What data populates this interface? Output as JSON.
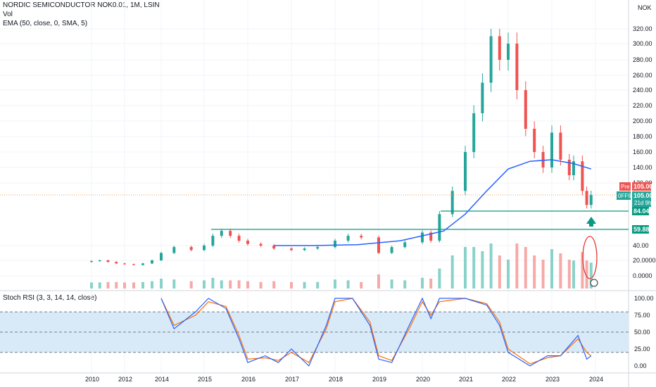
{
  "legend": {
    "title": "NORDIC SEMICONDUCTOR NOK0.01, 1M, LSIN",
    "vol": "Vol",
    "ema": "EMA (50, close, 0, SMA, 5)",
    "stoch": "Stoch RSI (3, 3, 14, 14, close)"
  },
  "currency": "NOK",
  "colors": {
    "up": "#26a69a",
    "down": "#ef5350",
    "up_vol": "#89d2c9",
    "down_vol": "#f7a9a7",
    "ema": "#2962ff",
    "stoch_k": "#2962ff",
    "stoch_d": "#ff6d00",
    "support": "#089981",
    "band": "#d8eaf8",
    "ellipse": "#e53935"
  },
  "badges": {
    "price_tag": "Pre",
    "price": "105.00",
    "ticker": "0FF9",
    "price2": "105.00",
    "countdown": "21d 9h",
    "level1": "84.04",
    "level2": "59.88"
  },
  "chart_data": [
    {
      "type": "candlestick",
      "title": "NORDIC SEMICONDUCTOR NOK0.01, 1M, LSIN",
      "y_ticks": [
        "0.0000",
        "20.0000",
        "40.00",
        "59.88",
        "84.04",
        "105.00",
        "120.00",
        "140.00",
        "160.00",
        "180.00",
        "200.00",
        "220.00",
        "240.00",
        "260.00",
        "280.00",
        "300.00",
        "320.00"
      ],
      "x_ticks": [
        "2010",
        "2012",
        "2014",
        "2015",
        "2016",
        "2017",
        "2018",
        "2019",
        "2020",
        "2021",
        "2022",
        "2023",
        "2024"
      ],
      "levels": [
        84.04,
        59.88
      ],
      "last_price": 105.0,
      "series": [
        {
          "name": "Price",
          "points": [
            {
              "t": 2010.0,
              "o": 18,
              "c": 19
            },
            {
              "t": 2010.5,
              "c": 20
            },
            {
              "t": 2011.0,
              "c": 18
            },
            {
              "t": 2011.5,
              "c": 16
            },
            {
              "t": 2012.0,
              "c": 15
            },
            {
              "t": 2012.5,
              "c": 14
            },
            {
              "t": 2013.0,
              "c": 16
            },
            {
              "t": 2013.5,
              "c": 20
            },
            {
              "t": 2014.0,
              "c": 30
            },
            {
              "t": 2014.3,
              "c": 38
            },
            {
              "t": 2014.7,
              "c": 34
            },
            {
              "t": 2015.0,
              "c": 40
            },
            {
              "t": 2015.2,
              "c": 52
            },
            {
              "t": 2015.4,
              "c": 58
            },
            {
              "t": 2015.6,
              "c": 52
            },
            {
              "t": 2015.8,
              "c": 46
            },
            {
              "t": 2016.0,
              "c": 42
            },
            {
              "t": 2016.3,
              "c": 40
            },
            {
              "t": 2016.6,
              "c": 36
            },
            {
              "t": 2017.0,
              "c": 34
            },
            {
              "t": 2017.3,
              "c": 36
            },
            {
              "t": 2017.6,
              "c": 38
            },
            {
              "t": 2018.0,
              "c": 46
            },
            {
              "t": 2018.3,
              "c": 52
            },
            {
              "t": 2018.6,
              "c": 50
            },
            {
              "t": 2019.0,
              "c": 30
            },
            {
              "t": 2019.3,
              "c": 38
            },
            {
              "t": 2019.6,
              "c": 44
            },
            {
              "t": 2020.0,
              "c": 56
            },
            {
              "t": 2020.2,
              "c": 46
            },
            {
              "t": 2020.4,
              "c": 80
            },
            {
              "t": 2020.7,
              "c": 110
            },
            {
              "t": 2021.0,
              "c": 160
            },
            {
              "t": 2021.2,
              "c": 210
            },
            {
              "t": 2021.4,
              "c": 250
            },
            {
              "t": 2021.6,
              "c": 310
            },
            {
              "t": 2021.8,
              "c": 280
            },
            {
              "t": 2022.0,
              "c": 300
            },
            {
              "t": 2022.2,
              "c": 240
            },
            {
              "t": 2022.4,
              "c": 190
            },
            {
              "t": 2022.6,
              "c": 160
            },
            {
              "t": 2022.8,
              "c": 140
            },
            {
              "t": 2023.0,
              "c": 185
            },
            {
              "t": 2023.2,
              "c": 150
            },
            {
              "t": 2023.4,
              "c": 130
            },
            {
              "t": 2023.5,
              "c": 148
            },
            {
              "t": 2023.7,
              "c": 110
            },
            {
              "t": 2023.8,
              "c": 92
            },
            {
              "t": 2023.9,
              "c": 105
            }
          ]
        },
        {
          "name": "EMA (50, close, 0, SMA, 5)",
          "points": [
            {
              "t": 2016.6,
              "v": 40
            },
            {
              "t": 2017.5,
              "v": 40
            },
            {
              "t": 2018.5,
              "v": 41
            },
            {
              "t": 2019.5,
              "v": 46
            },
            {
              "t": 2020.0,
              "v": 52
            },
            {
              "t": 2020.5,
              "v": 58
            },
            {
              "t": 2021.0,
              "v": 80
            },
            {
              "t": 2021.5,
              "v": 110
            },
            {
              "t": 2022.0,
              "v": 138
            },
            {
              "t": 2022.5,
              "v": 148
            },
            {
              "t": 2023.0,
              "v": 150
            },
            {
              "t": 2023.5,
              "v": 145
            },
            {
              "t": 2023.9,
              "v": 138
            }
          ]
        }
      ],
      "volume_ticks": [
        "0.0000",
        "20.0000",
        "40.00"
      ]
    },
    {
      "type": "line",
      "title": "Stoch RSI (3, 3, 14, 14, close)",
      "y_ticks": [
        "0.00",
        "25.00",
        "50.00",
        "75.00",
        "100.00"
      ],
      "bands": [
        20,
        50,
        80
      ],
      "series": [
        {
          "name": "K",
          "points": [
            [
              2014.0,
              100
            ],
            [
              2014.3,
              55
            ],
            [
              2014.8,
              80
            ],
            [
              2015.1,
              100
            ],
            [
              2015.5,
              85
            ],
            [
              2015.8,
              40
            ],
            [
              2016.0,
              5
            ],
            [
              2016.4,
              15
            ],
            [
              2016.7,
              5
            ],
            [
              2017.0,
              25
            ],
            [
              2017.4,
              0
            ],
            [
              2017.8,
              60
            ],
            [
              2018.0,
              100
            ],
            [
              2018.4,
              100
            ],
            [
              2018.8,
              60
            ],
            [
              2019.0,
              10
            ],
            [
              2019.3,
              5
            ],
            [
              2019.7,
              60
            ],
            [
              2020.0,
              100
            ],
            [
              2020.2,
              70
            ],
            [
              2020.4,
              100
            ],
            [
              2021.0,
              100
            ],
            [
              2021.5,
              90
            ],
            [
              2021.8,
              60
            ],
            [
              2022.0,
              20
            ],
            [
              2022.5,
              0
            ],
            [
              2022.9,
              15
            ],
            [
              2023.2,
              15
            ],
            [
              2023.6,
              45
            ],
            [
              2023.8,
              10
            ],
            [
              2023.9,
              15
            ]
          ]
        },
        {
          "name": "D",
          "points": [
            [
              2014.0,
              100
            ],
            [
              2014.3,
              60
            ],
            [
              2014.8,
              75
            ],
            [
              2015.1,
              95
            ],
            [
              2015.5,
              88
            ],
            [
              2015.8,
              45
            ],
            [
              2016.0,
              10
            ],
            [
              2016.4,
              12
            ],
            [
              2016.7,
              8
            ],
            [
              2017.0,
              20
            ],
            [
              2017.4,
              5
            ],
            [
              2017.8,
              55
            ],
            [
              2018.0,
              95
            ],
            [
              2018.4,
              100
            ],
            [
              2018.8,
              65
            ],
            [
              2019.0,
              15
            ],
            [
              2019.3,
              8
            ],
            [
              2019.7,
              55
            ],
            [
              2020.0,
              95
            ],
            [
              2020.2,
              75
            ],
            [
              2020.4,
              95
            ],
            [
              2021.0,
              100
            ],
            [
              2021.5,
              92
            ],
            [
              2021.8,
              65
            ],
            [
              2022.0,
              25
            ],
            [
              2022.5,
              3
            ],
            [
              2022.9,
              12
            ],
            [
              2023.2,
              15
            ],
            [
              2023.6,
              40
            ],
            [
              2023.8,
              20
            ],
            [
              2023.9,
              15
            ]
          ]
        }
      ]
    }
  ]
}
